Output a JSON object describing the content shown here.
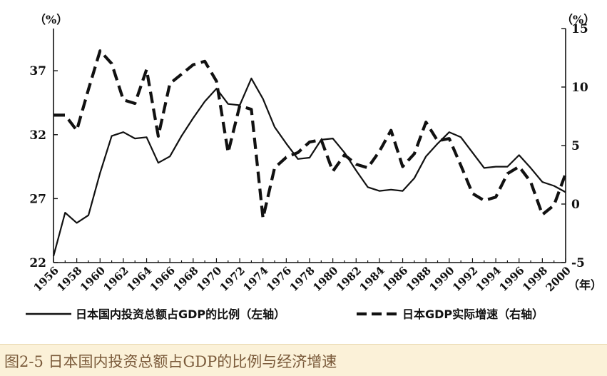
{
  "chart_data": {
    "type": "line",
    "left_axis_unit": "（%）",
    "right_axis_unit": "（%）",
    "x_axis_unit": "（年）",
    "left_ylim": [
      22,
      40.3
    ],
    "left_yticks": [
      22,
      27,
      32,
      37
    ],
    "right_ylim": [
      -5,
      15
    ],
    "right_yticks": [
      -5,
      0,
      5,
      10,
      15
    ],
    "x_tick_labels": [
      "1956",
      "1958",
      "1960",
      "1962",
      "1964",
      "1966",
      "1968",
      "1970",
      "1972",
      "1974",
      "1976",
      "1978",
      "1980",
      "1982",
      "1984",
      "1986",
      "1988",
      "1990",
      "1992",
      "1994",
      "1996",
      "1998",
      "2000"
    ],
    "series": [
      {
        "name": "日本国内投资总额占GDP的比例（左轴）",
        "axis": "left",
        "style": "solid",
        "x": [
          1956,
          1957,
          1958,
          1959,
          1960,
          1961,
          1962,
          1963,
          1964,
          1965,
          1966,
          1967,
          1968,
          1969,
          1970,
          1971,
          1972,
          1973,
          1974,
          1975,
          1976,
          1977,
          1978,
          1979,
          1980,
          1981,
          1982,
          1983,
          1984,
          1985,
          1986,
          1987,
          1988,
          1989,
          1990,
          1991,
          1992,
          1993,
          1994,
          1995,
          1996,
          1997,
          1998,
          1999,
          2000
        ],
        "values": [
          22.5,
          25.9,
          25.1,
          25.7,
          29.0,
          31.9,
          32.2,
          31.7,
          31.8,
          29.8,
          30.3,
          31.9,
          33.3,
          34.6,
          35.6,
          34.4,
          34.3,
          36.4,
          34.8,
          32.6,
          31.3,
          30.1,
          30.2,
          31.6,
          31.7,
          30.6,
          29.2,
          27.9,
          27.6,
          27.7,
          27.6,
          28.6,
          30.3,
          31.3,
          32.2,
          31.8,
          30.6,
          29.4,
          29.5,
          29.5,
          30.4,
          29.4,
          28.3,
          28.0,
          27.5
        ]
      },
      {
        "name": "日本GDP实际增速（右轴）",
        "axis": "right",
        "style": "dashed",
        "x": [
          1956,
          1957,
          1958,
          1959,
          1960,
          1961,
          1962,
          1963,
          1964,
          1965,
          1966,
          1967,
          1968,
          1969,
          1970,
          1971,
          1972,
          1973,
          1974,
          1975,
          1976,
          1977,
          1978,
          1979,
          1980,
          1981,
          1982,
          1983,
          1984,
          1985,
          1986,
          1987,
          1988,
          1989,
          1990,
          1991,
          1992,
          1993,
          1994,
          1995,
          1996,
          1997,
          1998,
          1999,
          2000
        ],
        "values": [
          7.6,
          7.6,
          6.3,
          9.8,
          13.1,
          12.0,
          8.9,
          8.6,
          11.5,
          5.8,
          10.3,
          11.1,
          11.9,
          12.2,
          10.5,
          4.4,
          8.4,
          8.1,
          -1.2,
          3.1,
          4.0,
          4.4,
          5.3,
          5.5,
          2.8,
          4.2,
          3.4,
          3.1,
          4.5,
          6.3,
          3.2,
          4.3,
          7.0,
          5.4,
          5.6,
          3.3,
          0.9,
          0.3,
          0.6,
          2.6,
          3.2,
          1.9,
          -0.9,
          -0.1,
          2.6
        ]
      }
    ],
    "legend": [
      "日本国内投资总额占GDP的比例（左轴）",
      "日本GDP实际增速（右轴）"
    ],
    "legend_placement": "bottom",
    "grid": false
  },
  "caption": "图2-5 日本国内投资总额占GDP的比例与经济增速"
}
